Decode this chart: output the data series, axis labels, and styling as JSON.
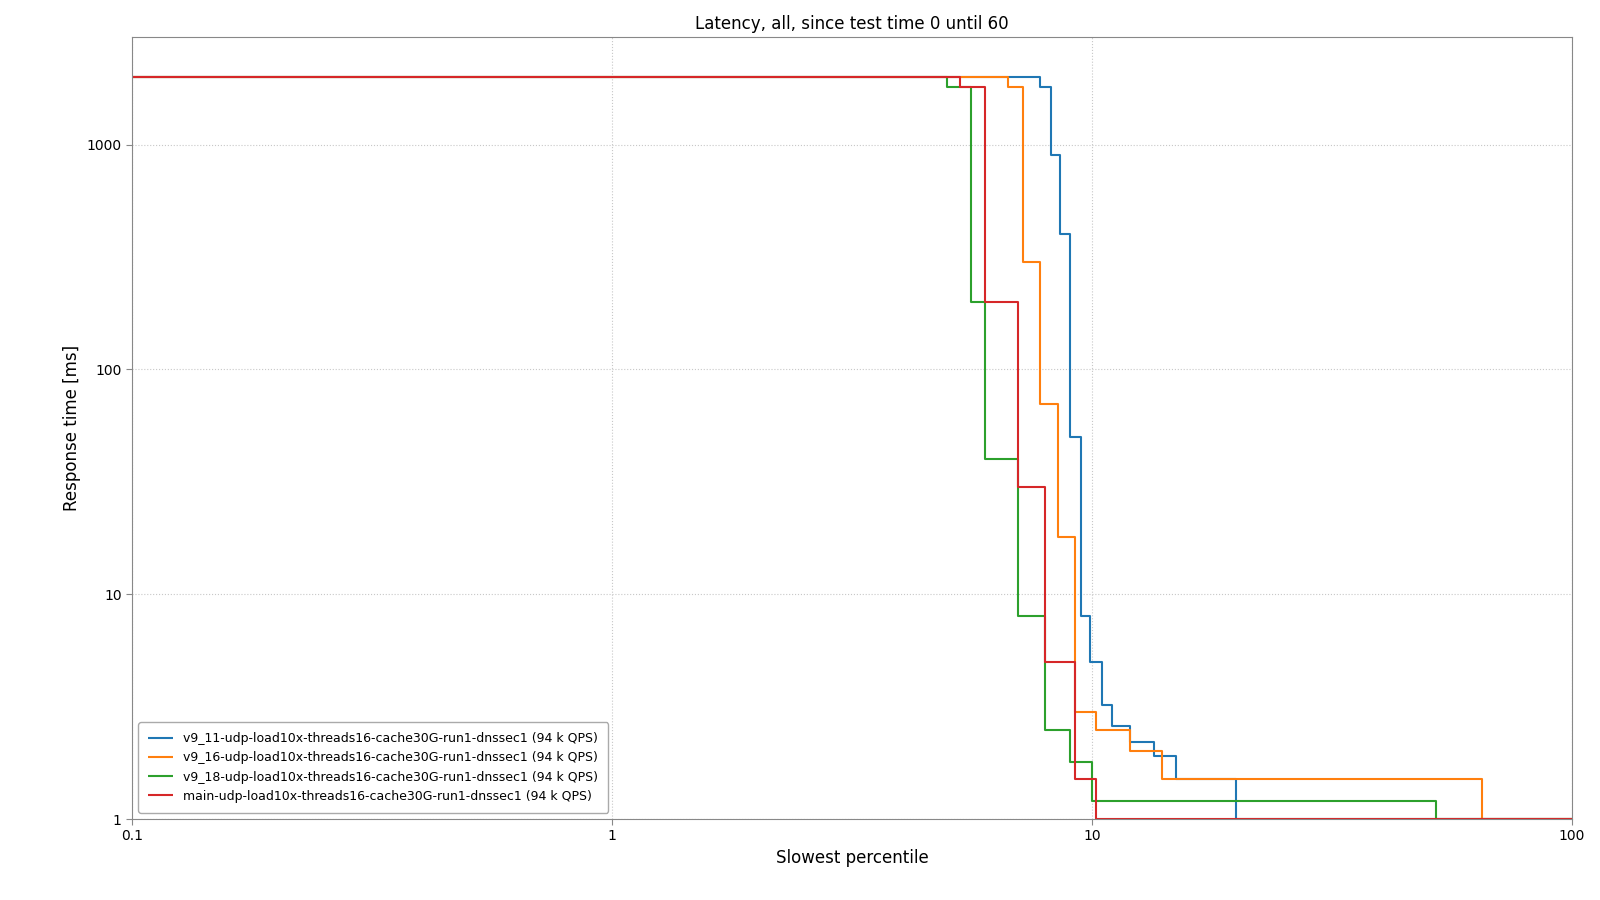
{
  "title": "Latency, all, since test time 0 until 60",
  "xlabel": "Slowest percentile",
  "ylabel": "Response time [ms]",
  "xlim": [
    0.1,
    100.0
  ],
  "ylim": [
    1.0,
    3000.0
  ],
  "background_color": "#ffffff",
  "grid_color": "#c8c8c8",
  "series": [
    {
      "label": "v9_11-udp-load10x-threads16-cache30G-run1-dnssec1 (94 k QPS)",
      "color": "#1f77b4",
      "x": [
        0.1,
        7.8,
        7.8,
        8.2,
        8.2,
        8.6,
        8.6,
        9.0,
        9.0,
        9.5,
        9.5,
        9.9,
        9.9,
        10.5,
        10.5,
        11.0,
        11.0,
        12.0,
        12.0,
        13.5,
        13.5,
        15.0,
        15.0,
        20.0,
        20.0,
        75.0,
        75.0,
        100.0
      ],
      "y": [
        2000,
        2000,
        1800,
        1800,
        900,
        900,
        400,
        400,
        50,
        50,
        8,
        8,
        5,
        5,
        3.2,
        3.2,
        2.6,
        2.6,
        2.2,
        2.2,
        1.9,
        1.9,
        1.5,
        1.5,
        1.0,
        1.0,
        1.0,
        1.0
      ]
    },
    {
      "label": "v9_16-udp-load10x-threads16-cache30G-run1-dnssec1 (94 k QPS)",
      "color": "#ff7f0e",
      "x": [
        0.1,
        6.7,
        6.7,
        7.2,
        7.2,
        7.8,
        7.8,
        8.5,
        8.5,
        9.2,
        9.2,
        10.2,
        10.2,
        12.0,
        12.0,
        14.0,
        14.0,
        65.0,
        65.0,
        100.0
      ],
      "y": [
        2000,
        2000,
        1800,
        1800,
        300,
        300,
        70,
        70,
        18,
        18,
        3,
        3,
        2.5,
        2.5,
        2.0,
        2.0,
        1.5,
        1.5,
        1.0,
        1.0
      ]
    },
    {
      "label": "v9_18-udp-load10x-threads16-cache30G-run1-dnssec1 (94 k QPS)",
      "color": "#2ca02c",
      "x": [
        0.1,
        5.0,
        5.0,
        5.6,
        5.6,
        6.0,
        6.0,
        7.0,
        7.0,
        8.0,
        8.0,
        9.0,
        9.0,
        10.0,
        10.0,
        52.0,
        52.0,
        100.0
      ],
      "y": [
        2000,
        2000,
        1800,
        1800,
        200,
        200,
        40,
        40,
        8,
        8,
        2.5,
        2.5,
        1.8,
        1.8,
        1.2,
        1.2,
        1.0,
        1.0
      ]
    },
    {
      "label": "main-udp-load10x-threads16-cache30G-run1-dnssec1 (94 k QPS)",
      "color": "#d62728",
      "x": [
        0.1,
        5.3,
        5.3,
        6.0,
        6.0,
        7.0,
        7.0,
        8.0,
        8.0,
        9.2,
        9.2,
        10.2,
        10.2,
        48.0,
        48.0,
        100.0
      ],
      "y": [
        2000,
        2000,
        1800,
        1800,
        200,
        200,
        30,
        30,
        5,
        5,
        1.5,
        1.5,
        1.0,
        1.0,
        1.0,
        1.0
      ]
    }
  ],
  "yticks": [
    1.0,
    10.0,
    100.0,
    1000.0
  ],
  "ytick_labels": [
    "1.0",
    "10.0",
    "100.0",
    "1000.0"
  ],
  "xticks": [
    0.1,
    1.0,
    10.0,
    100.0
  ],
  "xtick_labels": [
    "0.1",
    "1.0",
    "10.0",
    "100.0"
  ]
}
